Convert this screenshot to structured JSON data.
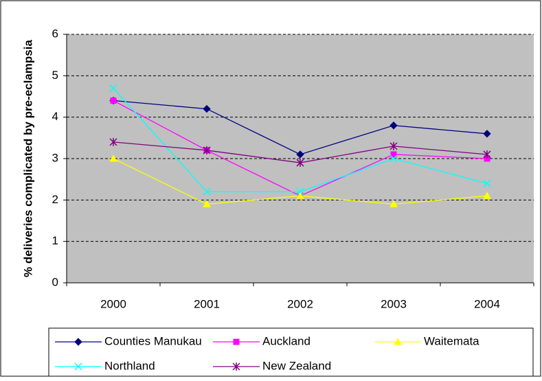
{
  "chart_data": {
    "type": "line",
    "y_label": "% deliveries complicated by pre-eclampsia",
    "categories": [
      "2000",
      "2001",
      "2002",
      "2003",
      "2004"
    ],
    "series": [
      {
        "name": "Counties Manukau",
        "color": "#000080",
        "marker": "diamond",
        "values": [
          4.4,
          4.2,
          3.1,
          3.8,
          3.6
        ]
      },
      {
        "name": "Auckland",
        "color": "#FF00FF",
        "marker": "square",
        "values": [
          4.4,
          3.2,
          2.1,
          3.1,
          3.0
        ]
      },
      {
        "name": "Waitemata",
        "color": "#FFFF00",
        "marker": "triangle",
        "values": [
          3.0,
          1.9,
          2.1,
          1.9,
          2.1
        ]
      },
      {
        "name": "Northland",
        "color": "#00FFFF",
        "marker": "x",
        "values": [
          4.7,
          2.2,
          2.2,
          3.0,
          2.4
        ]
      },
      {
        "name": "New Zealand",
        "color": "#800080",
        "marker": "star",
        "values": [
          3.4,
          3.2,
          2.9,
          3.3,
          3.1
        ]
      }
    ],
    "ylim": [
      0,
      6
    ],
    "yticks": [
      0,
      1,
      2,
      3,
      4,
      5,
      6
    ],
    "grid": true,
    "legend": "bottom"
  }
}
